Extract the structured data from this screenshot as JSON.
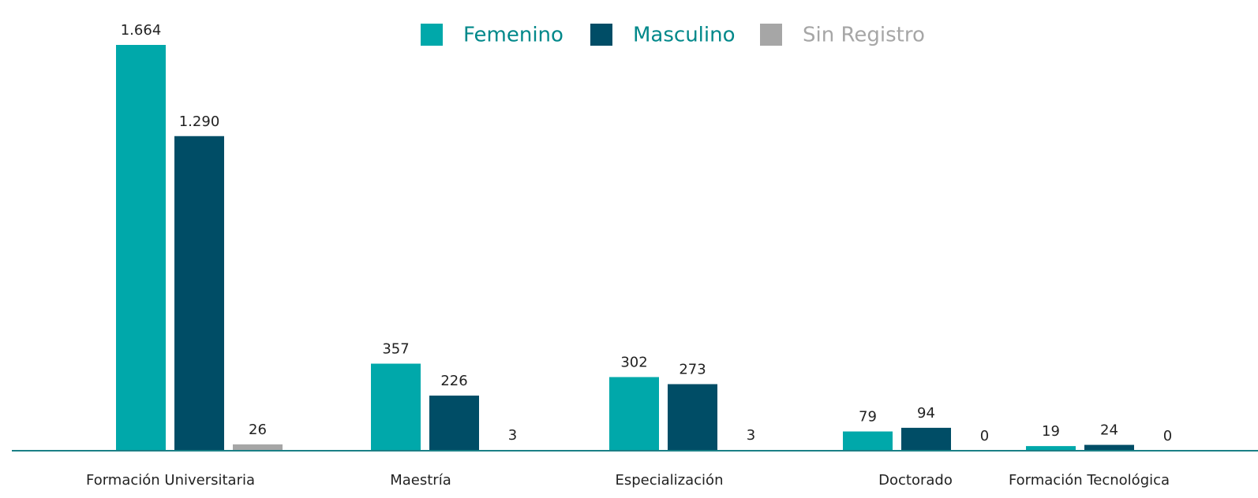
{
  "chart_data": {
    "type": "bar",
    "categories": [
      "Formación Universitaria",
      "Maestría",
      "Especialización",
      "Doctorado",
      "Formación Tecnológica"
    ],
    "series": [
      {
        "name": "Femenino",
        "color": "#00a8aa",
        "values": [
          1664,
          357,
          302,
          79,
          19
        ],
        "value_labels": [
          "1.664",
          "357",
          "302",
          "79",
          "19"
        ]
      },
      {
        "name": "Masculino",
        "color": "#004d66",
        "values": [
          1290,
          226,
          273,
          94,
          24
        ],
        "value_labels": [
          "1.290",
          "226",
          "273",
          "94",
          "24"
        ]
      },
      {
        "name": "Sin Registro",
        "color": "#a6a6a6",
        "values": [
          26,
          3,
          3,
          0,
          0
        ],
        "value_labels": [
          "26",
          "3",
          "3",
          "0",
          "0"
        ]
      }
    ]
  }
}
